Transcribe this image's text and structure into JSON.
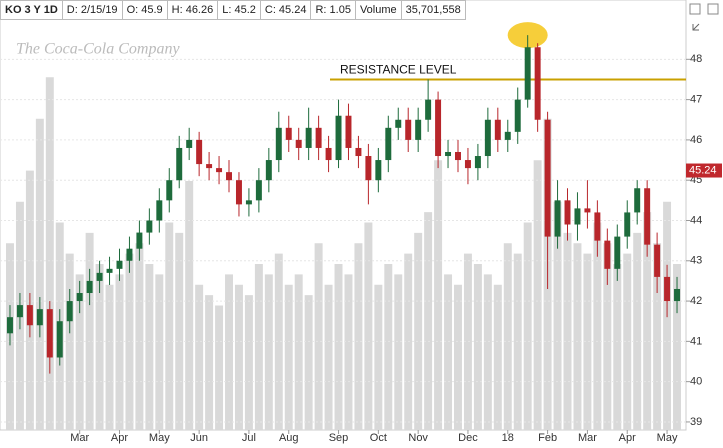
{
  "header": {
    "symbol": "KO 3 Y 1D",
    "date": "D: 2/15/19",
    "open": "O: 45.9",
    "high": "H: 46.26",
    "low": "L: 45.2",
    "close": "C: 45.24",
    "range": "R: 1.05",
    "volume_label": "Volume",
    "volume": "35,701,558"
  },
  "chart_data": {
    "type": "candlestick",
    "watermark": "The Coca-Cola Company",
    "categories": [
      null,
      null,
      null,
      null,
      null,
      null,
      null,
      "Mar",
      null,
      null,
      null,
      "Apr",
      null,
      null,
      null,
      "May",
      null,
      null,
      null,
      "Jun",
      null,
      null,
      null,
      null,
      "Jul",
      null,
      null,
      null,
      "Aug",
      null,
      null,
      null,
      null,
      "Sep",
      null,
      null,
      null,
      "Oct",
      null,
      null,
      null,
      "Nov",
      null,
      null,
      null,
      null,
      "Dec",
      null,
      null,
      null,
      "18",
      null,
      null,
      null,
      "Feb",
      null,
      null,
      null,
      "Mar",
      null,
      null,
      null,
      "Apr",
      null,
      null,
      null,
      "May",
      null
    ],
    "open": [
      41.2,
      41.6,
      41.9,
      41.4,
      41.8,
      40.6,
      41.5,
      42.0,
      42.2,
      42.5,
      42.7,
      42.8,
      43.0,
      43.3,
      43.7,
      44.0,
      44.5,
      45.0,
      45.8,
      46.0,
      45.4,
      45.3,
      45.2,
      45.0,
      44.4,
      44.5,
      45.0,
      45.5,
      46.3,
      46.0,
      45.8,
      46.3,
      45.8,
      45.5,
      46.6,
      45.8,
      45.6,
      45.0,
      45.5,
      46.3,
      46.5,
      46.0,
      46.5,
      47.0,
      45.6,
      45.7,
      45.5,
      45.3,
      45.6,
      46.5,
      46.0,
      46.2,
      47.0,
      48.3,
      46.5,
      43.6,
      44.5,
      43.9,
      44.3,
      44.2,
      43.5,
      42.8,
      43.6,
      44.2,
      44.8,
      43.4,
      42.6,
      42.0
    ],
    "high": [
      41.9,
      42.2,
      42.2,
      42.1,
      42.0,
      41.8,
      42.3,
      42.5,
      42.8,
      43.0,
      43.1,
      43.3,
      43.6,
      44.0,
      44.3,
      44.8,
      45.3,
      46.1,
      46.3,
      46.2,
      45.7,
      45.6,
      45.5,
      45.2,
      44.8,
      45.3,
      45.8,
      46.7,
      46.6,
      46.3,
      46.8,
      46.6,
      46.1,
      47.0,
      46.9,
      46.1,
      45.9,
      45.8,
      46.6,
      46.8,
      46.8,
      46.8,
      47.5,
      47.2,
      46.0,
      46.0,
      45.8,
      45.9,
      46.8,
      46.8,
      46.5,
      47.3,
      48.6,
      48.4,
      46.7,
      45.0,
      44.8,
      44.7,
      45.0,
      44.5,
      43.8,
      43.9,
      44.5,
      45.0,
      45.0,
      43.7,
      42.9,
      42.6
    ],
    "low": [
      40.9,
      41.3,
      41.1,
      41.1,
      40.2,
      40.4,
      41.2,
      41.7,
      41.9,
      42.2,
      42.4,
      42.5,
      42.7,
      43.0,
      43.4,
      43.7,
      44.2,
      44.8,
      45.5,
      45.1,
      45.0,
      44.9,
      44.7,
      44.1,
      44.1,
      44.2,
      44.7,
      45.2,
      45.7,
      45.5,
      45.5,
      45.5,
      45.2,
      45.3,
      45.5,
      45.3,
      44.4,
      44.7,
      45.2,
      46.0,
      45.7,
      45.7,
      46.2,
      45.3,
      45.3,
      45.2,
      44.9,
      45.0,
      45.3,
      45.7,
      45.7,
      45.9,
      46.8,
      46.2,
      42.3,
      43.3,
      43.5,
      43.5,
      43.8,
      43.1,
      42.4,
      42.5,
      43.3,
      43.9,
      43.1,
      42.2,
      41.6,
      41.7
    ],
    "close": [
      41.6,
      41.9,
      41.4,
      41.8,
      40.6,
      41.5,
      42.0,
      42.2,
      42.5,
      42.7,
      42.8,
      43.0,
      43.3,
      43.7,
      44.0,
      44.5,
      45.0,
      45.8,
      46.0,
      45.4,
      45.3,
      45.2,
      45.0,
      44.4,
      44.5,
      45.0,
      45.5,
      46.3,
      46.0,
      45.8,
      46.3,
      45.8,
      45.5,
      46.6,
      45.8,
      45.6,
      45.0,
      45.5,
      46.3,
      46.5,
      46.0,
      46.5,
      47.0,
      45.6,
      45.7,
      45.5,
      45.3,
      45.6,
      46.5,
      46.0,
      46.2,
      47.0,
      48.3,
      46.5,
      43.6,
      44.5,
      43.9,
      44.3,
      44.2,
      43.5,
      42.8,
      43.6,
      44.2,
      44.8,
      43.4,
      42.6,
      42.0,
      42.3
    ],
    "volume": [
      18000000,
      22000000,
      25000000,
      30000000,
      34000000,
      20000000,
      17000000,
      15000000,
      19000000,
      16000000,
      14000000,
      15000000,
      17000000,
      18000000,
      16000000,
      15000000,
      20000000,
      19000000,
      24000000,
      14000000,
      13000000,
      12000000,
      15000000,
      14000000,
      13000000,
      16000000,
      15000000,
      17000000,
      14000000,
      15000000,
      13000000,
      18000000,
      14000000,
      16000000,
      15000000,
      18000000,
      20000000,
      14000000,
      16000000,
      15000000,
      17000000,
      19000000,
      21000000,
      26000000,
      15000000,
      14000000,
      17000000,
      16000000,
      15000000,
      14000000,
      18000000,
      17000000,
      20000000,
      26000000,
      30000000,
      22000000,
      19000000,
      18000000,
      17000000,
      20000000,
      18000000,
      16000000,
      17000000,
      19000000,
      21000000,
      18000000,
      22000000,
      16000000
    ],
    "up_color": "#1e6b3c",
    "down_color": "#b8262b",
    "volume_color": "#d9d9d9",
    "ylim": [
      38.8,
      49.1
    ],
    "yticks": [
      39,
      40,
      41,
      42,
      43,
      44,
      45,
      46,
      47,
      48
    ],
    "y2lim": [
      0,
      40000000
    ],
    "grid": true,
    "price_tag": 45.24,
    "price_tag_color": "#c0282d",
    "annotations": [
      {
        "text": "RESISTANCE LEVEL",
        "value": 47.5,
        "color": "#c9a000"
      }
    ]
  }
}
